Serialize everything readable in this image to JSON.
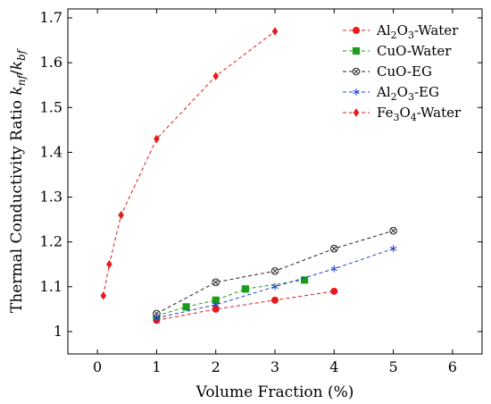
{
  "chart_data": {
    "type": "line",
    "xlabel": "Volume Fraction (%)",
    "ylabel_main": "Thermal Conductivity Ratio ",
    "ylabel_math": "k",
    "ylabel_sub1": "nf",
    "ylabel_slash": "/",
    "ylabel_sub2": "bf",
    "xlim": [
      -0.5,
      6.5
    ],
    "ylim": [
      0.95,
      1.72
    ],
    "x_ticks": [
      0,
      1,
      2,
      3,
      4,
      5,
      6
    ],
    "y_ticks": [
      1,
      1.1,
      1.2,
      1.3,
      1.4,
      1.5,
      1.6,
      1.7
    ],
    "x_tick_labels": [
      "0",
      "1",
      "2",
      "3",
      "4",
      "5",
      "6"
    ],
    "y_tick_labels": [
      "1",
      "1.1",
      "1.2",
      "1.3",
      "1.4",
      "1.5",
      "1.6",
      "1.7"
    ],
    "grid": false,
    "legend_position": "top-right",
    "series": [
      {
        "name": "Al2O3-Water",
        "label_parts": [
          "Al",
          "2",
          "O",
          "3",
          "-Water"
        ],
        "color": "#e41a1c",
        "marker": "circle",
        "x": [
          1,
          2,
          3,
          4
        ],
        "y": [
          1.025,
          1.05,
          1.07,
          1.09
        ]
      },
      {
        "name": "CuO-Water",
        "label_parts": [
          "CuO-Water"
        ],
        "color": "#1a9e1a",
        "marker": "square",
        "x": [
          1,
          1.5,
          2,
          2.5,
          3.5
        ],
        "y": [
          1.035,
          1.055,
          1.07,
          1.095,
          1.115
        ]
      },
      {
        "name": "CuO-EG",
        "label_parts": [
          "CuO-EG"
        ],
        "color": "#222222",
        "marker": "otimes",
        "x": [
          1,
          2,
          3,
          4,
          5
        ],
        "y": [
          1.04,
          1.11,
          1.135,
          1.185,
          1.225
        ]
      },
      {
        "name": "Al2O3-EG",
        "label_parts": [
          "Al",
          "2",
          "O",
          "3",
          "-EG"
        ],
        "color": "#1f3fd0",
        "marker": "star",
        "x": [
          1,
          2,
          3,
          4,
          5
        ],
        "y": [
          1.03,
          1.06,
          1.1,
          1.14,
          1.185
        ]
      },
      {
        "name": "Fe3O4-Water",
        "label_parts": [
          "Fe",
          "3",
          "O",
          "4",
          "-Water"
        ],
        "color": "#e41a1c",
        "marker": "diamond",
        "x": [
          0.1,
          0.2,
          0.4,
          1,
          2,
          3
        ],
        "y": [
          1.08,
          1.15,
          1.26,
          1.43,
          1.57,
          1.67
        ]
      }
    ]
  }
}
